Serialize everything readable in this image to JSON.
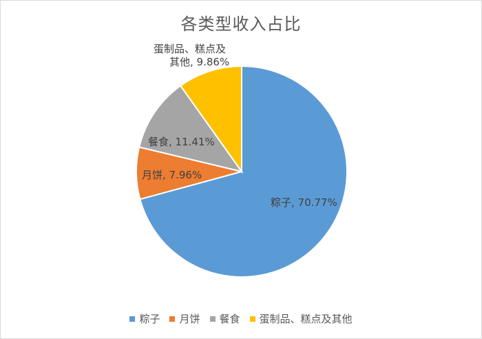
{
  "chart_data": {
    "type": "pie",
    "title": "各类型收入占比",
    "slices": [
      {
        "name": "粽子",
        "value": 70.77,
        "label": "粽子, 70.77%",
        "color": "#5B9BD5"
      },
      {
        "name": "月饼",
        "value": 7.96,
        "label": "月饼, 7.96%",
        "color": "#ED7D31"
      },
      {
        "name": "餐食",
        "value": 11.41,
        "label": "餐食, 11.41%",
        "color": "#A5A5A5"
      },
      {
        "name": "蛋制品、糕点及其他",
        "value": 9.86,
        "label_lines": [
          "蛋制品、糕点及",
          "其他, 9.86%"
        ],
        "color": "#FFC000"
      }
    ],
    "legend_position": "bottom"
  }
}
